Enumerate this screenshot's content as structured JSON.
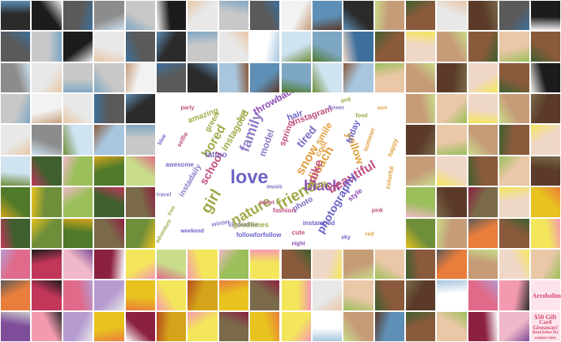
{
  "grid": {
    "cols": 18,
    "rows": 11
  },
  "palette": [
    "#2b2b2b",
    "#5a5a5a",
    "#8c8c8c",
    "#c8c8c8",
    "#e8e8e8",
    "#f2f2f2",
    "#a8c6de",
    "#5e8fb6",
    "#3d6f9c",
    "#cfe3f1",
    "#7ea7c4",
    "#e9c7a7",
    "#c69c78",
    "#8a5a3c",
    "#5b3a29",
    "#f0d8c8",
    "#6f8e3a",
    "#4f7a2a",
    "#9bbf5a",
    "#c8dc8a",
    "#3f5f2f",
    "#7a6a4a",
    "#f4e65a",
    "#e8c21e",
    "#d4a51a",
    "#f0b8c8",
    "#e06a8a",
    "#c2365a",
    "#8c2040",
    "#f49ab0",
    "#e97d3b",
    "#b54a1e",
    "#7e4d9a",
    "#b69bd0",
    "#1c1c1c",
    "#ffffff"
  ],
  "tiles": [
    [
      0,
      34,
      1,
      2,
      3,
      34,
      4,
      3,
      1,
      5,
      7,
      0,
      12,
      13,
      4,
      14,
      1,
      34
    ],
    [
      1,
      3,
      34,
      4,
      1,
      0,
      3,
      4,
      35,
      9,
      10,
      8,
      13,
      15,
      12,
      13,
      11,
      13
    ],
    [
      2,
      4,
      3,
      3,
      5,
      1,
      0,
      6,
      7,
      10,
      9,
      6,
      11,
      12,
      14,
      15,
      13,
      34
    ],
    [
      3,
      5,
      4,
      1,
      0,
      -1,
      -1,
      -1,
      -1,
      -1,
      -1,
      -1,
      -1,
      12,
      11,
      15,
      12,
      14
    ],
    [
      4,
      2,
      9,
      6,
      3,
      -1,
      -1,
      -1,
      -1,
      -1,
      -1,
      -1,
      -1,
      14,
      11,
      12,
      13,
      15
    ],
    [
      9,
      20,
      18,
      17,
      19,
      -1,
      -1,
      -1,
      -1,
      -1,
      -1,
      -1,
      -1,
      12,
      15,
      13,
      11,
      14
    ],
    [
      17,
      16,
      18,
      20,
      21,
      -1,
      -1,
      -1,
      -1,
      -1,
      -1,
      -1,
      -1,
      18,
      14,
      21,
      15,
      23
    ],
    [
      20,
      16,
      17,
      21,
      16,
      -1,
      -1,
      -1,
      -1,
      -1,
      -1,
      -1,
      -1,
      16,
      12,
      30,
      13,
      22
    ],
    [
      26,
      27,
      25,
      28,
      22,
      19,
      22,
      18,
      22,
      13,
      15,
      12,
      11,
      13,
      30,
      12,
      15,
      11
    ],
    [
      30,
      27,
      26,
      33,
      23,
      22,
      24,
      23,
      21,
      22,
      4,
      11,
      13,
      14,
      35,
      26,
      29,
      25
    ],
    [
      32,
      29,
      33,
      23,
      28,
      24,
      22,
      21,
      23,
      22,
      35,
      12,
      7,
      13,
      11,
      28,
      25,
      29
    ]
  ],
  "tile_texts": [
    {
      "row": 9,
      "col": 17,
      "lines": [
        "Arrobalimo"
      ]
    },
    {
      "row": 10,
      "col": 17,
      "lines": [
        "$50 Gift",
        "Card",
        "Giveaway!",
        "Read below for",
        "contest rules"
      ]
    }
  ],
  "wordcloud": {
    "words": [
      {
        "text": "love",
        "color": "#6a64c8"
      },
      {
        "text": "family",
        "color": "#8e7bc8"
      },
      {
        "text": "friend",
        "color": "#a0a848"
      },
      {
        "text": "black",
        "color": "#8a4ab4"
      },
      {
        "text": "girl",
        "color": "#a0a848"
      },
      {
        "text": "nature",
        "color": "#a0a848"
      },
      {
        "text": "snow",
        "color": "#e0a040"
      },
      {
        "text": "beach",
        "color": "#e0a040"
      },
      {
        "text": "beautiful",
        "color": "#c05080"
      },
      {
        "text": "tired",
        "color": "#7a6ac0"
      },
      {
        "text": "school",
        "color": "#c05080"
      },
      {
        "text": "bored",
        "color": "#a0a848"
      },
      {
        "text": "yellow",
        "color": "#e0a040"
      },
      {
        "text": "nike",
        "color": "#c05080"
      },
      {
        "text": "photography",
        "color": "#6a64c8"
      },
      {
        "text": "throwback",
        "color": "#8a4ab4"
      },
      {
        "text": "Instagram",
        "color": "#c05080"
      },
      {
        "text": "smile",
        "color": "#e0a040"
      },
      {
        "text": "friday",
        "color": "#6a64c8"
      },
      {
        "text": "instagood",
        "color": "#a0a848"
      },
      {
        "text": "model",
        "color": "#8e7bc8"
      },
      {
        "text": "spring",
        "color": "#c05080"
      },
      {
        "text": "hair",
        "color": "#6a64c8"
      },
      {
        "text": "cool",
        "color": "#e0a040"
      },
      {
        "text": "amazing",
        "color": "#a0a848"
      },
      {
        "text": "green",
        "color": "#a0a848"
      },
      {
        "text": "instadaily",
        "color": "#8e7bc8"
      },
      {
        "text": "tattoo",
        "color": "#7a6ac0"
      },
      {
        "text": "truth",
        "color": "#a0a848"
      },
      {
        "text": "likeforlike",
        "color": "#8e7bc8"
      },
      {
        "text": "goodtimes",
        "color": "#a0a848"
      },
      {
        "text": "followforfollow",
        "color": "#6a64c8"
      },
      {
        "text": "photo",
        "color": "#7a6ac0"
      },
      {
        "text": "fashion",
        "color": "#c05080"
      },
      {
        "text": "colorful",
        "color": "#e0a040"
      },
      {
        "text": "happy",
        "color": "#e0a040"
      },
      {
        "text": "style",
        "color": "#8a4ab4"
      },
      {
        "text": "summer",
        "color": "#e0a040"
      },
      {
        "text": "selfie",
        "color": "#c05080"
      },
      {
        "text": "fun",
        "color": "#a0a848"
      },
      {
        "text": "cute",
        "color": "#c05080"
      },
      {
        "text": "instamood",
        "color": "#6a64c8"
      },
      {
        "text": "winter",
        "color": "#8e7bc8"
      },
      {
        "text": "awesome",
        "color": "#7a6ac0"
      },
      {
        "text": "sweet",
        "color": "#c05080"
      },
      {
        "text": "food",
        "color": "#a0a848"
      },
      {
        "text": "blue",
        "color": "#6a64c8"
      },
      {
        "text": "pink",
        "color": "#c05080"
      },
      {
        "text": "red",
        "color": "#e0a040"
      },
      {
        "text": "tree",
        "color": "#a0a848"
      },
      {
        "text": "flower",
        "color": "#8e7bc8"
      },
      {
        "text": "weekend",
        "color": "#6a64c8"
      },
      {
        "text": "adventure",
        "color": "#a0a848"
      },
      {
        "text": "music",
        "color": "#7a6ac0"
      },
      {
        "text": "party",
        "color": "#c05080"
      },
      {
        "text": "sun",
        "color": "#e0a040"
      },
      {
        "text": "sky",
        "color": "#6a64c8"
      },
      {
        "text": "night",
        "color": "#8a4ab4"
      },
      {
        "text": "dog",
        "color": "#a0a848"
      },
      {
        "text": "travel",
        "color": "#8e7bc8"
      }
    ]
  }
}
